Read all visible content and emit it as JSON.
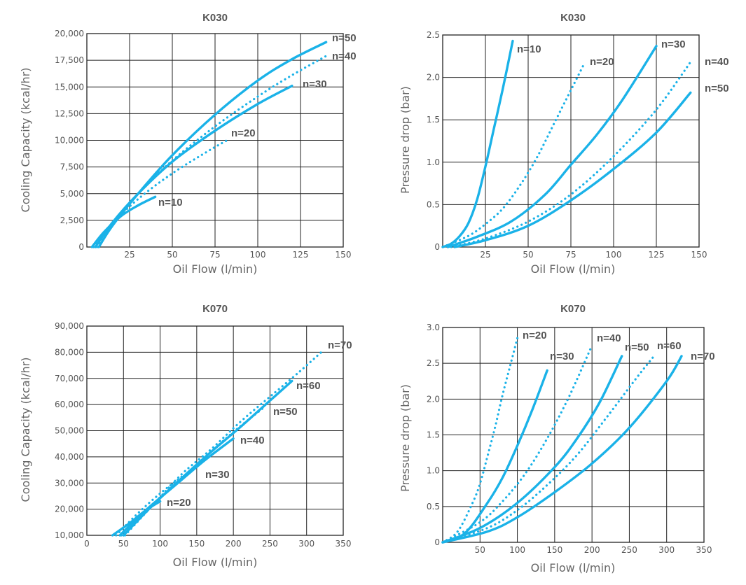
{
  "colors": {
    "line": "#1ab2e8",
    "grid": "#222222",
    "text": "#555555"
  },
  "chart_data": [
    {
      "type": "line",
      "title": "K030",
      "xlabel": "Oil Flow (l/min)",
      "ylabel": "Cooling Capacity  (kcal/hr)",
      "xlim": [
        0,
        150
      ],
      "ylim": [
        0,
        20000
      ],
      "xticks": [
        25,
        50,
        75,
        100,
        125,
        150
      ],
      "xtick_labels": [
        "25",
        "50",
        "75",
        "100",
        "125",
        "150"
      ],
      "yticks": [
        0,
        2500,
        5000,
        7500,
        10000,
        12500,
        15000,
        17500,
        20000
      ],
      "ytick_labels": [
        "0",
        "2,500",
        "5,000",
        "7,500",
        "10,000",
        "12,500",
        "15,000",
        "17,500",
        "20,000"
      ],
      "grid": true,
      "series": [
        {
          "name": "n=10",
          "dashed": false,
          "x": [
            3,
            10,
            20,
            30,
            40
          ],
          "y": [
            0,
            1400,
            2900,
            3900,
            4700
          ]
        },
        {
          "name": "n=20",
          "dashed": true,
          "x": [
            4,
            15,
            30,
            50,
            70,
            82
          ],
          "y": [
            0,
            2200,
            4500,
            6900,
            8900,
            10000
          ]
        },
        {
          "name": "n=30",
          "dashed": false,
          "x": [
            5,
            15,
            30,
            50,
            75,
            100,
            120
          ],
          "y": [
            0,
            2300,
            5000,
            8000,
            10900,
            13400,
            15100
          ]
        },
        {
          "name": "n=40",
          "dashed": true,
          "x": [
            6,
            15,
            30,
            50,
            75,
            100,
            120,
            140
          ],
          "y": [
            0,
            2100,
            5000,
            8100,
            11300,
            14100,
            16100,
            17900
          ]
        },
        {
          "name": "n=50",
          "dashed": false,
          "x": [
            7,
            15,
            30,
            50,
            75,
            100,
            120,
            140
          ],
          "y": [
            0,
            2000,
            5000,
            8600,
            12400,
            15600,
            17600,
            19200
          ]
        }
      ]
    },
    {
      "type": "line",
      "title": "K030",
      "xlabel": "Oil Flow (l/min)",
      "ylabel": "Pressure drop  (bar)",
      "xlim": [
        0,
        150
      ],
      "ylim": [
        0,
        2.5
      ],
      "xticks": [
        25,
        50,
        75,
        100,
        125,
        150
      ],
      "xtick_labels": [
        "25",
        "50",
        "75",
        "100",
        "125",
        "150"
      ],
      "yticks": [
        0,
        0.5,
        1.0,
        1.5,
        2.0,
        2.5
      ],
      "ytick_labels": [
        "0",
        "0.5",
        "1.0",
        "1.5",
        "2.0",
        "2.5"
      ],
      "grid": true,
      "series": [
        {
          "name": "n=10",
          "dashed": false,
          "x": [
            0,
            5,
            10,
            15,
            20,
            25,
            30,
            35,
            41
          ],
          "y": [
            0,
            0.04,
            0.13,
            0.28,
            0.55,
            0.95,
            1.4,
            1.85,
            2.43
          ]
        },
        {
          "name": "n=20",
          "dashed": true,
          "x": [
            0,
            15,
            25,
            35,
            45,
            55,
            65,
            75,
            83
          ],
          "y": [
            0,
            0.13,
            0.27,
            0.45,
            0.72,
            1.05,
            1.45,
            1.85,
            2.17
          ]
        },
        {
          "name": "n=30",
          "dashed": false,
          "x": [
            3,
            20,
            40,
            60,
            75,
            90,
            105,
            125
          ],
          "y": [
            0,
            0.12,
            0.3,
            0.62,
            0.97,
            1.32,
            1.73,
            2.37
          ]
        },
        {
          "name": "n=40",
          "dashed": true,
          "x": [
            5,
            25,
            50,
            75,
            100,
            125,
            146
          ],
          "y": [
            0,
            0.1,
            0.3,
            0.62,
            1.07,
            1.62,
            2.21
          ]
        },
        {
          "name": "n=50",
          "dashed": false,
          "x": [
            7,
            25,
            50,
            75,
            100,
            125,
            145
          ],
          "y": [
            0,
            0.08,
            0.25,
            0.55,
            0.92,
            1.35,
            1.82
          ]
        }
      ]
    },
    {
      "type": "line",
      "title": "K070",
      "xlabel": "Oil Flow (l/min)",
      "ylabel": "Cooling Capacity  (kcal/hr)",
      "xlim": [
        0,
        350
      ],
      "ylim": [
        10000,
        90000
      ],
      "xticks": [
        0,
        50,
        100,
        150,
        200,
        250,
        300,
        350
      ],
      "xtick_labels": [
        "0",
        "50",
        "100",
        "150",
        "200",
        "250",
        "300",
        "350"
      ],
      "yticks": [
        10000,
        20000,
        30000,
        40000,
        50000,
        60000,
        70000,
        80000,
        90000
      ],
      "ytick_labels": [
        "10,000",
        "20,000",
        "30,000",
        "40,000",
        "50,000",
        "60,000",
        "70,000",
        "80,000",
        "90,000"
      ],
      "grid": true,
      "series": [
        {
          "name": "n=20",
          "dashed": false,
          "x": [
            35,
            60,
            80,
            100
          ],
          "y": [
            10000,
            15000,
            19500,
            23000
          ]
        },
        {
          "name": "n=30",
          "dashed": true,
          "x": [
            40,
            70,
            100,
            130
          ],
          "y": [
            10000,
            18500,
            26000,
            32500
          ]
        },
        {
          "name": "n=40",
          "dashed": false,
          "x": [
            45,
            80,
            120,
            160,
            200
          ],
          "y": [
            10000,
            19500,
            29000,
            38500,
            47000
          ]
        },
        {
          "name": "n=50",
          "dashed": true,
          "x": [
            47,
            80,
            120,
            160,
            200,
            240
          ],
          "y": [
            10000,
            19000,
            29500,
            39500,
            49500,
            58500
          ]
        },
        {
          "name": "n=60",
          "dashed": false,
          "x": [
            50,
            90,
            130,
            170,
            210,
            250,
            280
          ],
          "y": [
            10000,
            21500,
            32000,
            42000,
            51500,
            61500,
            69000
          ]
        },
        {
          "name": "n=70",
          "dashed": true,
          "x": [
            52,
            90,
            130,
            170,
            210,
            250,
            290,
            320
          ],
          "y": [
            10000,
            21500,
            33500,
            43000,
            53500,
            63000,
            72500,
            80000
          ]
        }
      ]
    },
    {
      "type": "line",
      "title": "K070",
      "xlabel": "Oil Flow (l/min)",
      "ylabel": "Pressure drop  (bar)",
      "xlim": [
        0,
        350
      ],
      "ylim": [
        0,
        3.0
      ],
      "xticks": [
        50,
        100,
        150,
        200,
        250,
        300,
        350
      ],
      "xtick_labels": [
        "50",
        "100",
        "150",
        "200",
        "250",
        "300",
        "350"
      ],
      "yticks": [
        0,
        0.5,
        1.0,
        1.5,
        2.0,
        2.5,
        3.0
      ],
      "ytick_labels": [
        "0",
        "0.5",
        "1.0",
        "1.5",
        "2.0",
        "2.5",
        "3.0"
      ],
      "grid": true,
      "series": [
        {
          "name": "n=20",
          "dashed": true,
          "x": [
            0,
            20,
            40,
            50,
            60,
            70,
            80,
            90,
            100
          ],
          "y": [
            0,
            0.15,
            0.55,
            0.82,
            1.2,
            1.6,
            2.05,
            2.45,
            2.85
          ]
        },
        {
          "name": "n=30",
          "dashed": false,
          "x": [
            0,
            30,
            60,
            80,
            100,
            120,
            140
          ],
          "y": [
            0,
            0.13,
            0.55,
            0.9,
            1.35,
            1.85,
            2.4
          ]
        },
        {
          "name": "n=40",
          "dashed": true,
          "x": [
            0,
            50,
            80,
            110,
            140,
            170,
            200
          ],
          "y": [
            0,
            0.28,
            0.57,
            0.95,
            1.45,
            2.05,
            2.75
          ]
        },
        {
          "name": "n=50",
          "dashed": false,
          "x": [
            0,
            50,
            100,
            150,
            180,
            210,
            240
          ],
          "y": [
            0,
            0.2,
            0.55,
            1.05,
            1.45,
            1.95,
            2.6
          ]
        },
        {
          "name": "n=60",
          "dashed": true,
          "x": [
            0,
            60,
            100,
            140,
            180,
            220,
            260,
            283
          ],
          "y": [
            0,
            0.2,
            0.45,
            0.8,
            1.22,
            1.75,
            2.3,
            2.6
          ]
        },
        {
          "name": "n=70",
          "dashed": false,
          "x": [
            0,
            60,
            100,
            150,
            200,
            250,
            300,
            320
          ],
          "y": [
            0,
            0.15,
            0.35,
            0.7,
            1.1,
            1.6,
            2.25,
            2.6
          ]
        }
      ]
    }
  ]
}
